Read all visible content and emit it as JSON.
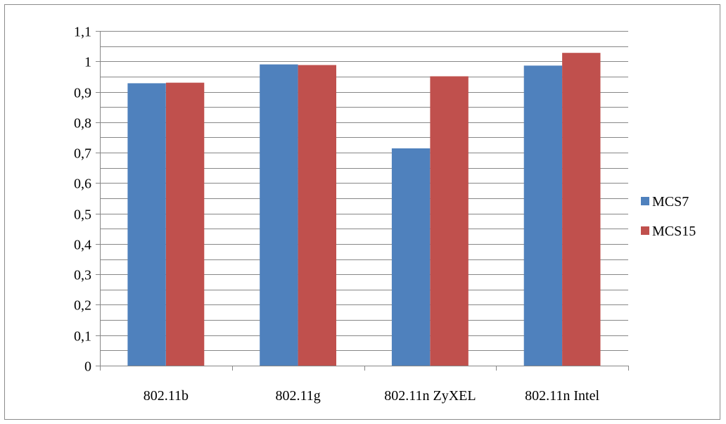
{
  "chart_data": {
    "type": "bar",
    "categories": [
      "802.11b",
      "802.11g",
      "802.11n ZyXEL",
      "802.11n Intel"
    ],
    "series": [
      {
        "name": "MCS7",
        "values": [
          0.928,
          0.99,
          0.714,
          0.986
        ],
        "color": "#4f81bd"
      },
      {
        "name": "MCS15",
        "values": [
          0.93,
          0.988,
          0.951,
          1.028
        ],
        "color": "#c0504d"
      }
    ],
    "yticks": [
      "0",
      "0,1",
      "0,2",
      "0,3",
      "0,4",
      "0,5",
      "0,6",
      "0,7",
      "0,8",
      "0,9",
      "1",
      "1,1"
    ],
    "ylim": [
      0,
      1.1
    ],
    "ystep": 0.1,
    "minor_grid_step": 0.05,
    "grid": true,
    "legend": "right",
    "title": "",
    "xlabel": "",
    "ylabel": ""
  }
}
